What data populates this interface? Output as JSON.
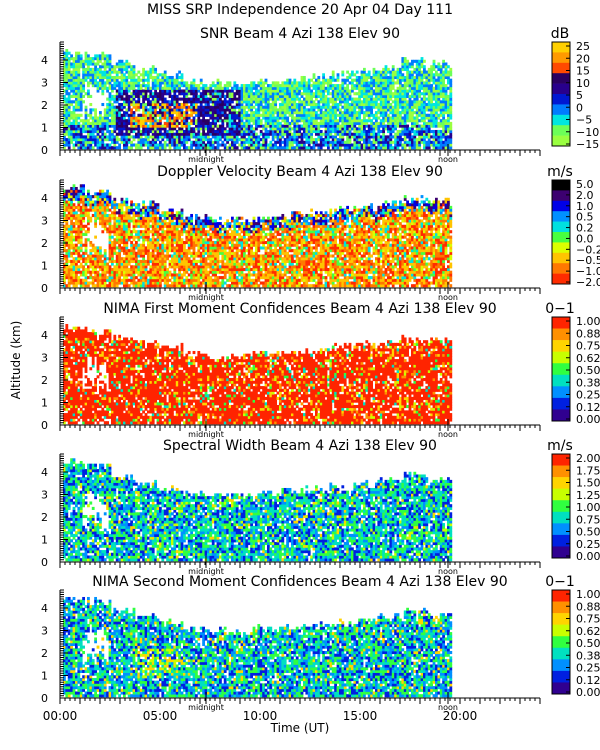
{
  "figure_title": "MISS SRP Independence  20 Apr 04 Day 111",
  "ylabel": "Altitude (km)",
  "xlabel": "Time (UT)",
  "x_tick_labels": [
    "00:00",
    "05:00",
    "10:00",
    "15:00",
    "20:00"
  ],
  "markers": {
    "midnight": "midnight",
    "noon": "noon"
  },
  "chart_data": [
    {
      "type": "heatmap",
      "title": "SNR Beam 4 Azi 138 Elev 90",
      "units": "dB",
      "x": [
        0,
        5,
        10,
        15,
        20
      ],
      "xlim": [
        0,
        24
      ],
      "ylim": [
        0,
        4.8
      ],
      "y_ticks": [
        0,
        1,
        2,
        3,
        4
      ],
      "colorbar_labels": [
        "25",
        "20",
        "15",
        "10",
        "5",
        "0",
        "−5",
        "−10",
        "−15"
      ],
      "colorbar_colors": [
        "#ffd000",
        "#ff9a00",
        "#ff4a00",
        "#2a0060",
        "#28008c",
        "#0018d2",
        "#007cff",
        "#00e6e0",
        "#6cff58",
        "#9aff40"
      ],
      "colorbar_color_values": [
        25,
        20,
        15,
        10,
        5,
        0,
        -5,
        -10,
        -15,
        -18
      ],
      "data_end_hour": 19.5,
      "cloud_top_km": [
        4.3,
        4.2,
        3.8,
        3.5,
        3.3,
        3.0,
        2.9,
        2.9,
        3.0,
        3.1,
        3.2,
        3.3,
        3.4,
        3.6,
        3.9,
        3.8
      ],
      "approx_max_dB": 25,
      "approx_min_dB": -15
    },
    {
      "type": "heatmap",
      "title": "Doppler Velocity Beam 4 Azi 138 Elev 90",
      "units": "m/s",
      "x": [
        0,
        5,
        10,
        15,
        20
      ],
      "xlim": [
        0,
        24
      ],
      "ylim": [
        0,
        4.8
      ],
      "y_ticks": [
        0,
        1,
        2,
        3,
        4
      ],
      "colorbar_labels": [
        "5.0",
        "2.0",
        "1.0",
        "0.5",
        "0.2",
        "0.0",
        "−0.2",
        "−0.5",
        "−1.0",
        "−2.0"
      ],
      "colorbar_colors": [
        "#000000",
        "#3c0070",
        "#0000e6",
        "#0090ff",
        "#00e0e0",
        "#48ff40",
        "#dcff00",
        "#ffc400",
        "#ff7800",
        "#ff2c00"
      ],
      "colorbar_color_values": [
        5.0,
        2.0,
        1.0,
        0.5,
        0.2,
        0.0,
        -0.2,
        -0.5,
        -1.0,
        -2.0
      ],
      "data_end_hour": 19.5,
      "cloud_top_km": [
        4.4,
        4.2,
        3.9,
        3.7,
        3.4,
        3.1,
        3.0,
        3.0,
        3.1,
        3.2,
        3.3,
        3.4,
        3.5,
        3.7,
        3.9,
        3.8
      ],
      "dominant_range_m_s": [
        -2.0,
        0.5
      ]
    },
    {
      "type": "heatmap",
      "title": "NIMA First Moment Confidences Beam 4 Azi 138 Elev 90",
      "units": "0−1",
      "x": [
        0,
        5,
        10,
        15,
        20
      ],
      "xlim": [
        0,
        24
      ],
      "ylim": [
        0,
        4.8
      ],
      "y_ticks": [
        0,
        1,
        2,
        3,
        4
      ],
      "colorbar_labels": [
        "1.00",
        "0.88",
        "0.75",
        "0.62",
        "0.50",
        "0.38",
        "0.25",
        "0.12",
        "0.00"
      ],
      "colorbar_colors": [
        "#ff2400",
        "#ff9000",
        "#ffd400",
        "#c8ff00",
        "#30ff40",
        "#00e0c0",
        "#0090ff",
        "#0020e0",
        "#300090"
      ],
      "colorbar_color_values": [
        1.0,
        0.88,
        0.75,
        0.62,
        0.5,
        0.38,
        0.25,
        0.12,
        0.0
      ],
      "data_end_hour": 19.5,
      "cloud_top_km": [
        4.3,
        4.1,
        3.8,
        3.6,
        3.4,
        3.1,
        3.0,
        3.0,
        3.1,
        3.2,
        3.3,
        3.4,
        3.5,
        3.6,
        3.8,
        3.7
      ],
      "dominant_confidence": 1.0
    },
    {
      "type": "heatmap",
      "title": "Spectral Width Beam 4 Azi 138 Elev 90",
      "units": "m/s",
      "x": [
        0,
        5,
        10,
        15,
        20
      ],
      "xlim": [
        0,
        24
      ],
      "ylim": [
        0,
        4.8
      ],
      "y_ticks": [
        0,
        1,
        2,
        3,
        4
      ],
      "colorbar_labels": [
        "2.00",
        "1.75",
        "1.50",
        "1.25",
        "1.00",
        "0.75",
        "0.50",
        "0.25",
        "0.00"
      ],
      "colorbar_colors": [
        "#ff2400",
        "#ff9000",
        "#ffd400",
        "#c8ff00",
        "#30ff40",
        "#00e0c0",
        "#0090ff",
        "#0020e0",
        "#300090"
      ],
      "colorbar_color_values": [
        2.0,
        1.75,
        1.5,
        1.25,
        1.0,
        0.75,
        0.5,
        0.25,
        0.0
      ],
      "data_end_hour": 19.5,
      "cloud_top_km": [
        4.4,
        4.2,
        3.7,
        3.4,
        3.2,
        3.0,
        2.9,
        2.9,
        3.0,
        3.1,
        3.2,
        3.3,
        3.4,
        3.6,
        3.8,
        3.6
      ],
      "dominant_range_m_s": [
        0.25,
        1.25
      ]
    },
    {
      "type": "heatmap",
      "title": "NIMA Second Moment Confidences Beam 4 Azi 138 Elev 90",
      "units": "0−1",
      "x": [
        0,
        5,
        10,
        15,
        20
      ],
      "xlim": [
        0,
        24
      ],
      "ylim": [
        0,
        4.8
      ],
      "y_ticks": [
        0,
        1,
        2,
        3,
        4
      ],
      "colorbar_labels": [
        "1.00",
        "0.88",
        "0.75",
        "0.62",
        "0.50",
        "0.38",
        "0.25",
        "0.12",
        "0.00"
      ],
      "colorbar_colors": [
        "#ff2400",
        "#ff9000",
        "#ffd400",
        "#c8ff00",
        "#30ff40",
        "#00e0c0",
        "#0090ff",
        "#0020e0",
        "#300090"
      ],
      "colorbar_color_values": [
        1.0,
        0.88,
        0.75,
        0.62,
        0.5,
        0.38,
        0.25,
        0.12,
        0.0
      ],
      "data_end_hour": 19.5,
      "cloud_top_km": [
        4.4,
        4.2,
        3.8,
        3.5,
        3.3,
        3.0,
        2.9,
        2.9,
        3.0,
        3.1,
        3.2,
        3.3,
        3.4,
        3.6,
        3.8,
        3.6
      ],
      "dominant_range": [
        0.25,
        0.62
      ]
    }
  ]
}
